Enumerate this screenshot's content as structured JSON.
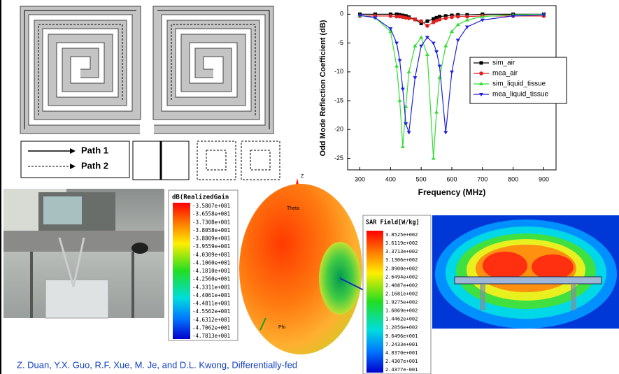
{
  "chart_data": {
    "type": "line",
    "y_label": "Odd Mode Reflection Coefficient (dB)",
    "x_label": "Frequency (MHz)",
    "x": [
      300,
      350,
      400,
      420,
      430,
      440,
      450,
      460,
      480,
      500,
      520,
      540,
      550,
      560,
      580,
      600,
      620,
      650,
      700,
      800,
      900
    ],
    "series": [
      {
        "name": "sim_air",
        "color": "#000000",
        "marker": "square",
        "values": [
          0,
          0,
          0,
          0,
          -0.1,
          -0.2,
          -0.3,
          -0.5,
          -0.9,
          -1.6,
          -1.2,
          -0.8,
          -0.6,
          -0.4,
          -0.3,
          -0.2,
          -0.1,
          -0.1,
          0,
          0,
          0
        ]
      },
      {
        "name": "mea_air",
        "color": "#e02020",
        "marker": "circle",
        "values": [
          -0.3,
          -0.3,
          -0.3,
          -0.4,
          -0.4,
          -0.5,
          -0.6,
          -0.7,
          -0.9,
          -1.2,
          -2,
          -1.4,
          -1.1,
          -0.9,
          -0.7,
          -0.5,
          -0.4,
          -0.4,
          -0.3,
          -0.3,
          -0.3
        ]
      },
      {
        "name": "sim_liquid_tissue",
        "color": "#33dd33",
        "marker": "triangle-up",
        "values": [
          -0.2,
          -0.6,
          -3,
          -9,
          -15,
          -23,
          -16,
          -10,
          -5.5,
          -4,
          -7,
          -25,
          -17,
          -11,
          -5.5,
          -3,
          -1.8,
          -1,
          -0.4,
          -0.1,
          0
        ]
      },
      {
        "name": "mea_liquid_tissue",
        "color": "#2020dd",
        "marker": "triangle-down",
        "values": [
          -0.2,
          -0.6,
          -2.5,
          -5,
          -8,
          -13,
          -19,
          -20.5,
          -11,
          -5.5,
          -4,
          -5,
          -6.5,
          -9,
          -20.5,
          -10,
          -4.5,
          -2.2,
          -1,
          -0.3,
          -0.1
        ]
      }
    ],
    "xlim": [
      260,
      940
    ],
    "ylim": [
      -27,
      1.5
    ],
    "xticks": [
      300,
      400,
      500,
      600,
      700,
      800,
      900
    ],
    "yticks": [
      0,
      -5,
      -10,
      -15,
      -20,
      -25
    ],
    "legend": "right"
  },
  "diagram": {
    "legend": [
      "Path 1",
      "Path 2"
    ]
  },
  "gain_colorbar": {
    "title": "dB(RealizedGain",
    "labels": [
      "-3.5807e+001",
      "-3.6558e+001",
      "-3.7308e+001",
      "-3.8058e+001",
      "-3.8809e+001",
      "-3.9559e+001",
      "-4.0309e+001",
      "-4.1060e+001",
      "-4.1810e+001",
      "-4.2560e+001",
      "-4.3311e+001",
      "-4.4061e+001",
      "-4.4811e+001",
      "-4.5562e+001",
      "-4.6312e+001",
      "-4.7062e+001",
      "-4.7813e+001"
    ]
  },
  "pattern": {
    "axes": [
      "Z",
      "Theta",
      "Phi"
    ]
  },
  "sar_colorbar": {
    "title": "SAR Field[W/kg]",
    "labels": [
      "3.8525e+002",
      "3.6119e+002",
      "3.3713e+002",
      "3.1306e+002",
      "2.8900e+002",
      "2.6494e+002",
      "2.4087e+002",
      "2.1681e+002",
      "1.9275e+002",
      "1.6869e+002",
      "1.4462e+002",
      "1.2056e+002",
      "9.6496e+001",
      "7.2433e+001",
      "4.8370e+001",
      "2.4307e+001",
      "2.4377e-001"
    ]
  },
  "citation": "Z. Duan, Y.X. Guo, R.F. Xue, M. Je, and D.L. Kwong, Differentially-fed"
}
